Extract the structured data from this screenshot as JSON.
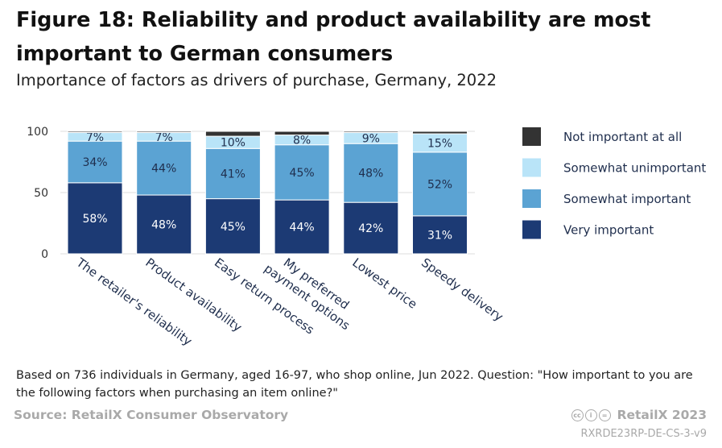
{
  "header": {
    "title": "Figure 18: Reliability and product availability are most important to German consumers",
    "subtitle": "Importance of factors as drivers of purchase, Germany, 2022"
  },
  "footer": {
    "note": "Based on 736 individuals in Germany, aged 16-97, who shop online, Jun 2022. Question: \"How important to you are the following  factors when purchasing an item online?\"",
    "source": "Source: RetailX Consumer Observatory",
    "brand": "RetailX 2023",
    "code": "RXRDE23RP-DE-CS-3-v9",
    "license_icon": "creative-commons-icon"
  },
  "chart_data": {
    "type": "bar",
    "stacked": true,
    "categories": [
      "The retailer's reliability",
      "Product availability",
      "Easy return process",
      "My preferred payment options",
      "Lowest price",
      "Speedy delivery"
    ],
    "series": [
      {
        "name": "Very important",
        "color": "#1c3a74",
        "values": [
          58,
          48,
          45,
          44,
          42,
          31
        ],
        "labels": [
          "58%",
          "48%",
          "45%",
          "44%",
          "42%",
          "31%"
        ]
      },
      {
        "name": "Somewhat important",
        "color": "#5ba3d3",
        "values": [
          34,
          44,
          41,
          45,
          48,
          52
        ],
        "labels": [
          "34%",
          "44%",
          "41%",
          "45%",
          "48%",
          "52%"
        ]
      },
      {
        "name": "Somewhat unimportant",
        "color": "#b9e4f8",
        "values": [
          7,
          7,
          10,
          8,
          9,
          15
        ],
        "labels": [
          "7%",
          "7%",
          "10%",
          "8%",
          "9%",
          "15%"
        ]
      },
      {
        "name": "Not important at all",
        "color": "#333333",
        "values": [
          1,
          1,
          4,
          3,
          1,
          2
        ],
        "labels": [
          "",
          "",
          "",
          "",
          "",
          ""
        ]
      }
    ],
    "yticks": [
      0,
      50,
      100
    ],
    "ylim": [
      0,
      100
    ],
    "grid": true,
    "legend": "right"
  }
}
